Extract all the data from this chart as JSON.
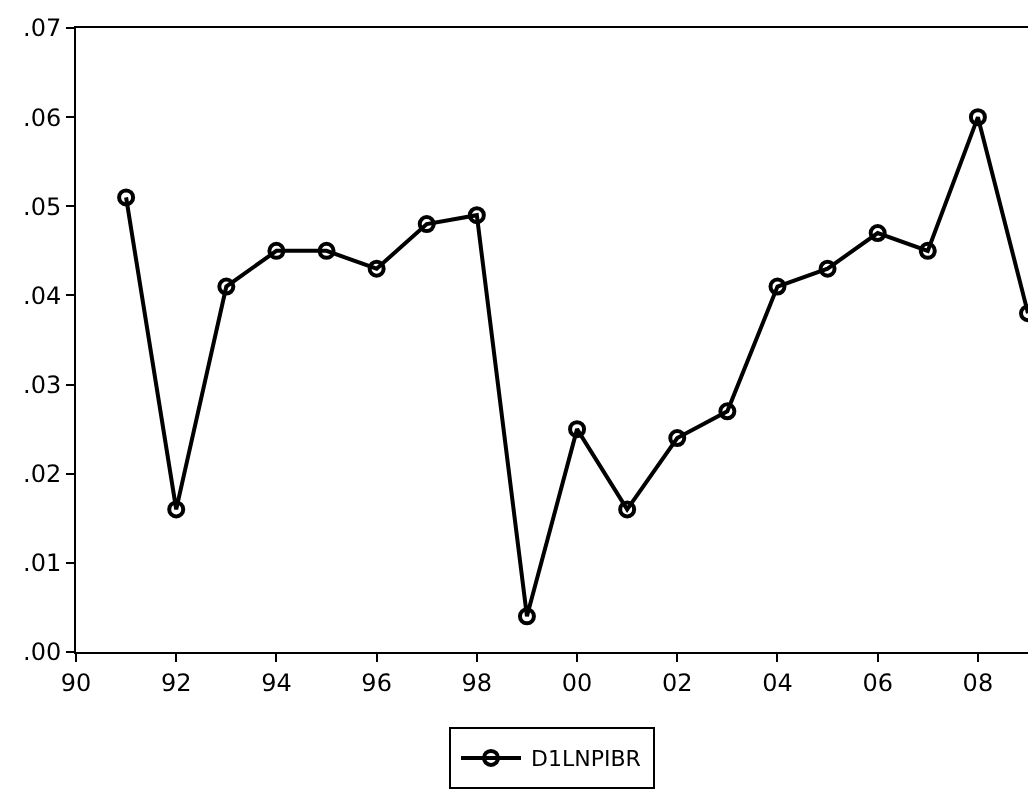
{
  "chart_data": {
    "type": "line",
    "x": [
      1991,
      1992,
      1993,
      1994,
      1995,
      1996,
      1997,
      1998,
      1999,
      2000,
      2001,
      2002,
      2003,
      2004,
      2005,
      2006,
      2007,
      2008,
      2009
    ],
    "series": [
      {
        "name": "D1LNPIBR",
        "color": "#000000",
        "values": [
          0.051,
          0.016,
          0.041,
          0.045,
          0.045,
          0.043,
          0.048,
          0.049,
          0.004,
          0.025,
          0.016,
          0.024,
          0.027,
          0.041,
          0.043,
          0.047,
          0.045,
          0.06,
          0.038
        ]
      }
    ],
    "xlim": [
      1990,
      2009
    ],
    "xticks": [
      {
        "value": 1990,
        "label": "90"
      },
      {
        "value": 1992,
        "label": "92"
      },
      {
        "value": 1994,
        "label": "94"
      },
      {
        "value": 1996,
        "label": "96"
      },
      {
        "value": 1998,
        "label": "98"
      },
      {
        "value": 2000,
        "label": "00"
      },
      {
        "value": 2002,
        "label": "02"
      },
      {
        "value": 2004,
        "label": "04"
      },
      {
        "value": 2006,
        "label": "06"
      },
      {
        "value": 2008,
        "label": "08"
      }
    ],
    "ylim": [
      0,
      0.07
    ],
    "yticks": [
      {
        "value": 0,
        "label": ".00"
      },
      {
        "value": 0.01,
        "label": ".01"
      },
      {
        "value": 0.02,
        "label": ".02"
      },
      {
        "value": 0.03,
        "label": ".03"
      },
      {
        "value": 0.04,
        "label": ".04"
      },
      {
        "value": 0.05,
        "label": ".05"
      },
      {
        "value": 0.06,
        "label": ".06"
      },
      {
        "value": 0.07,
        "label": ".07"
      }
    ],
    "grid": false,
    "legend": "bottom",
    "marker": "circle",
    "line_style": "solid"
  }
}
